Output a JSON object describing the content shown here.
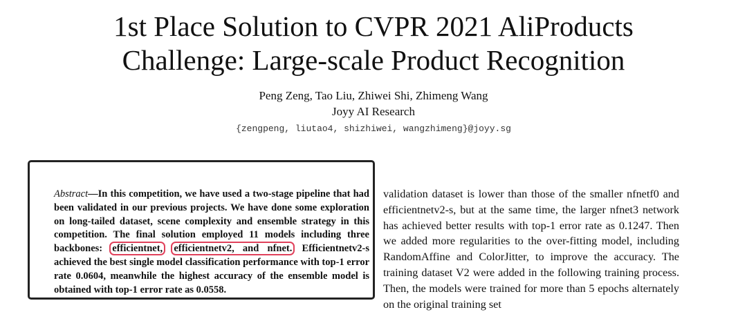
{
  "paper": {
    "title_line1": "1st Place Solution to CVPR 2021 AliProducts",
    "title_line2": "Challenge: Large-scale Product Recognition",
    "authors": "Peng Zeng, Tao Liu, Zhiwei Shi, Zhimeng Wang",
    "affiliation": "Joyy AI Research",
    "email": "{zengpeng, liutao4, shizhiwei, wangzhimeng}@joyy.sg"
  },
  "abstract": {
    "lead": "Abstract",
    "dash": "—",
    "text_before": "In this competition, we have used a two-stage pipeline that had been validated in our previous projects. We have done some exploration on long-tailed dataset, scene complexity and ensemble strategy in this competition. The final solution employed 11 models including three backbones: ",
    "highlight1": "efficientnet,",
    "highlight2": "efficientnetv2, and nfnet.",
    "text_after": " Efficientnetv2-s achieved the best single model classification performance with top-1 error rate 0.0604, meanwhile the highest accuracy of the ensemble model is obtained with top-1 error rate as 0.0558."
  },
  "body": {
    "paragraph": "validation dataset is lower than those of the smaller nfnetf0 and efficientnetv2-s, but at the same time, the larger nfnet3 network has achieved better results with top-1 error rate as 0.1247. Then we added more regularities to the over-fitting model, including RandomAffine and ColorJitter, to improve the accuracy. The training dataset V2 were added in the following training process. Then, the models were trained for more than 5 epochs alternately on the original training set"
  },
  "colors": {
    "highlight_border": "#e0405a",
    "box_border": "#222222"
  }
}
